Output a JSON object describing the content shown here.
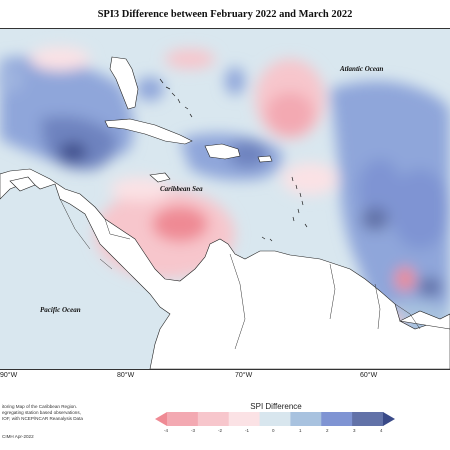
{
  "title": "SPI3 Difference between February 2022 and March 2022",
  "map": {
    "labels": {
      "atlantic": "Atlantic Ocean",
      "caribbean": "Caribbean Sea",
      "pacific": "Pacific Ocean"
    },
    "longitude_ticks": [
      "90°W",
      "80°W",
      "70°W",
      "60°W"
    ]
  },
  "footnote": {
    "lines": [
      "itoring Map of the Caribbean Region.",
      "egregating station based observations,",
      "IOF, with NCEP/NCAR Reanalysis Data"
    ],
    "credit": "CIMH Apr-2022"
  },
  "legend": {
    "title": "SPI Difference",
    "ticks": [
      "-4",
      "-3",
      "-2",
      "-1",
      "0",
      "1",
      "2",
      "3",
      "4"
    ],
    "colors": [
      "#ef8a94",
      "#f3a9b2",
      "#f7c6cc",
      "#fbe2e5",
      "#d8e6ee",
      "#a8c2df",
      "#7f94d3",
      "#6272a8",
      "#3a4a88"
    ]
  }
}
